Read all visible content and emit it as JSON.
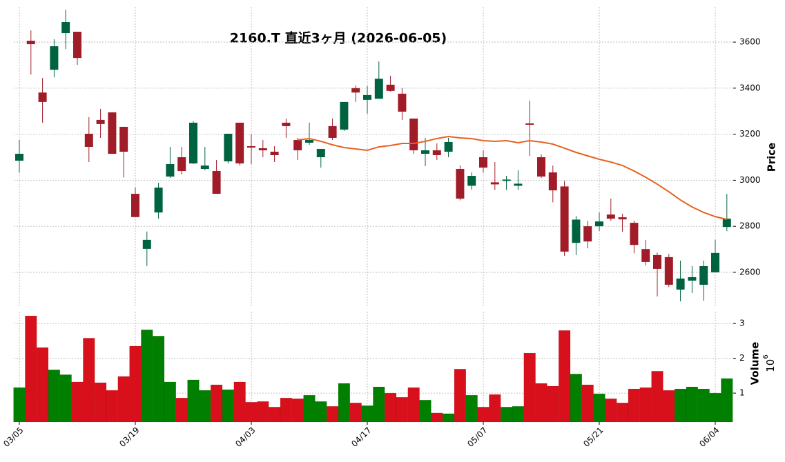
{
  "chart_data": {
    "type": "candlestick",
    "title": "2160.T  直近3ヶ月  (2026-06-05)",
    "categories": [
      "03/05",
      null,
      null,
      null,
      null,
      null,
      null,
      null,
      null,
      null,
      "03/19",
      null,
      null,
      null,
      null,
      null,
      null,
      null,
      null,
      null,
      "04/03",
      null,
      null,
      null,
      null,
      null,
      null,
      null,
      null,
      null,
      "04/17",
      null,
      null,
      null,
      null,
      null,
      null,
      null,
      null,
      null,
      "05/07",
      null,
      null,
      null,
      null,
      null,
      null,
      null,
      null,
      null,
      "05/21",
      null,
      null,
      null,
      null,
      null,
      null,
      null,
      null,
      null,
      "06/04",
      null
    ],
    "open": [
      3085,
      3606,
      3381,
      3480,
      3639,
      3645,
      3202,
      3262,
      3295,
      3232,
      2941,
      2702,
      2860,
      3016,
      3100,
      3073,
      3049,
      3040,
      3082,
      3250,
      3148,
      3139,
      3124,
      3250,
      3175,
      3163,
      3100,
      3235,
      3220,
      3400,
      3349,
      3354,
      3415,
      3376,
      3268,
      3115,
      3130,
      3124,
      3049,
      2976,
      3100,
      2991,
      2997,
      2976,
      3247,
      3100,
      3034,
      2973,
      2728,
      2800,
      2800,
      2851,
      2839,
      2815,
      2701,
      2675,
      2666,
      2525,
      2564,
      2546,
      2600,
      2797
    ],
    "high": [
      3175,
      3651,
      3444,
      3612,
      3741,
      3645,
      3274,
      3310,
      3295,
      3232,
      2968,
      2777,
      2989,
      3145,
      3145,
      3256,
      3145,
      3088,
      3202,
      3250,
      3200,
      3175,
      3148,
      3268,
      3184,
      3250,
      3136,
      3268,
      3340,
      3412,
      3409,
      3516,
      3454,
      3400,
      3268,
      3184,
      3160,
      3184,
      3064,
      3034,
      3130,
      3079,
      3019,
      3043,
      3346,
      3112,
      3064,
      2997,
      2845,
      2824,
      2860,
      2920,
      2854,
      2824,
      2740,
      2686,
      2680,
      2651,
      2627,
      2651,
      2741,
      2941
    ],
    "low": [
      3034,
      3459,
      3250,
      3447,
      3570,
      3501,
      3079,
      3184,
      3115,
      3012,
      2840,
      2627,
      2833,
      3010,
      3025,
      3070,
      3043,
      2941,
      3073,
      3064,
      3070,
      3100,
      3079,
      3184,
      3088,
      3154,
      3055,
      3175,
      3214,
      3340,
      3289,
      3354,
      3385,
      3262,
      3115,
      3061,
      3088,
      3100,
      2913,
      2958,
      3034,
      2958,
      2958,
      2958,
      3106,
      3010,
      2904,
      2672,
      2675,
      2704,
      2779,
      2824,
      2776,
      2683,
      2630,
      2495,
      2536,
      2474,
      2510,
      2477,
      2600,
      2779
    ],
    "close": [
      3115,
      3591,
      3340,
      3582,
      3687,
      3531,
      3145,
      3244,
      3115,
      3124,
      2840,
      2741,
      2968,
      3070,
      3040,
      3250,
      3064,
      2941,
      3202,
      3073,
      3142,
      3130,
      3109,
      3235,
      3130,
      3175,
      3136,
      3184,
      3340,
      3381,
      3370,
      3441,
      3388,
      3298,
      3130,
      3130,
      3109,
      3166,
      2920,
      3019,
      3055,
      2982,
      3003,
      2985,
      3241,
      3016,
      2956,
      2690,
      2829,
      2734,
      2821,
      2833,
      2830,
      2719,
      2645,
      2615,
      2546,
      2573,
      2579,
      2627,
      2684,
      2833
    ],
    "up_color": "#006340",
    "down_color": "#a01c28",
    "ma": {
      "color": "#e8601c",
      "values": [
        null,
        null,
        null,
        null,
        null,
        null,
        null,
        null,
        null,
        null,
        null,
        null,
        null,
        null,
        null,
        null,
        null,
        null,
        null,
        null,
        null,
        null,
        null,
        null,
        3175,
        3181,
        3169,
        3154,
        3142,
        3136,
        3130,
        3145,
        3151,
        3160,
        3160,
        3169,
        3181,
        3190,
        3184,
        3181,
        3172,
        3169,
        3172,
        3163,
        3172,
        3166,
        3157,
        3139,
        3121,
        3106,
        3091,
        3079,
        3064,
        3040,
        3013,
        2983,
        2950,
        2914,
        2884,
        2860,
        2842,
        2830
      ]
    },
    "ylim": [
      2450,
      3753
    ],
    "yticks": [
      2600,
      2800,
      3000,
      3200,
      3400,
      3600
    ],
    "ylabel": "Price",
    "volume": {
      "up_color": "#007f00",
      "down_color": "#d7101b",
      "values": [
        1.16,
        3.22,
        2.31,
        1.67,
        1.53,
        1.32,
        2.58,
        1.3,
        1.08,
        1.48,
        2.35,
        2.82,
        2.64,
        1.32,
        0.86,
        1.38,
        1.08,
        1.24,
        1.1,
        1.32,
        0.74,
        0.76,
        0.6,
        0.86,
        0.84,
        0.94,
        0.76,
        0.62,
        1.28,
        0.72,
        0.64,
        1.18,
        1.0,
        0.88,
        1.16,
        0.8,
        0.43,
        0.41,
        1.69,
        0.94,
        0.6,
        0.96,
        0.6,
        0.62,
        2.15,
        1.28,
        1.2,
        2.8,
        1.55,
        1.24,
        0.98,
        0.84,
        0.72,
        1.12,
        1.16,
        1.63,
        1.08,
        1.12,
        1.18,
        1.12,
        1.0,
        1.42
      ],
      "ylim": [
        0.17,
        3.34
      ],
      "yticks": [
        1,
        2,
        3
      ],
      "ylabel": "Volume",
      "scale_base": "10",
      "scale_exponent": "6"
    },
    "grid": true
  }
}
